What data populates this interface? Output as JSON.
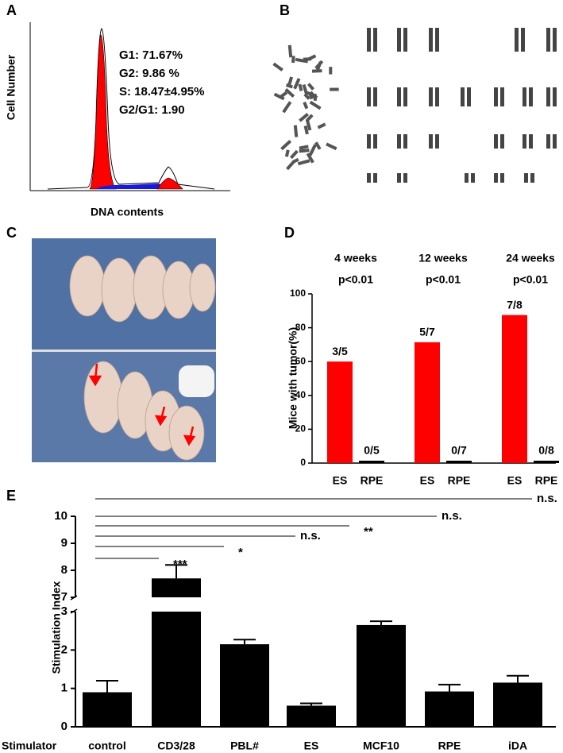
{
  "panels": {
    "a": {
      "label": "A",
      "ylabel": "Cell Number",
      "xlabel": "DNA contents",
      "stats": [
        "G1: 71.67%",
        "G2: 9.86 %",
        "S: 18.47±4.95%",
        "G2/G1: 1.90"
      ]
    },
    "b": {
      "label": "B"
    },
    "c": {
      "label": "C"
    }
  },
  "chart_data": [
    {
      "type": "bar",
      "label": "D",
      "ylabel": "Mice with tumor(%)",
      "groups": [
        {
          "name": "4 weeks",
          "p": "p<0.01"
        },
        {
          "name": "12 weeks",
          "p": "p<0.01"
        },
        {
          "name": "24 weeks",
          "p": "p<0.01"
        }
      ],
      "categories": [
        "ES",
        "RPE",
        "ES",
        "RPE",
        "ES",
        "RPE"
      ],
      "values": [
        60,
        0,
        71.43,
        0,
        87.5,
        0
      ],
      "value_labels": [
        "3/5",
        "0/5",
        "5/7",
        "0/7",
        "7/8",
        "0/8"
      ],
      "colors": [
        "#ff0000",
        "#000000",
        "#ff0000",
        "#000000",
        "#ff0000",
        "#000000"
      ],
      "ylim": [
        0,
        100
      ],
      "yticks": [
        0,
        20,
        40,
        60,
        80,
        100
      ]
    },
    {
      "type": "broken_bar",
      "label": "E",
      "ylabel": "Stimulation Index",
      "xlabel": "Stimulator",
      "categories": [
        "control",
        "CD3/28",
        "PBL#",
        "ES",
        "MCF10",
        "RPE",
        "iDA"
      ],
      "values": [
        0.9,
        7.7,
        2.15,
        0.55,
        2.65,
        0.92,
        1.15
      ],
      "errors": [
        0.3,
        0.5,
        0.12,
        0.06,
        0.1,
        0.18,
        0.18
      ],
      "color": "#000000",
      "ylim": [
        0,
        10
      ],
      "ybreak": [
        3,
        7
      ],
      "yticks": [
        0,
        1,
        2,
        3,
        7,
        8,
        9,
        10
      ],
      "significance": [
        {
          "label": "***",
          "target": "CD3/28"
        },
        {
          "label": "*",
          "target": "PBL#"
        },
        {
          "label": "n.s.",
          "target": "ES"
        },
        {
          "label": "**",
          "target": "MCF10"
        },
        {
          "label": "n.s.",
          "target": "RPE"
        },
        {
          "label": "n.s.",
          "target": "iDA"
        }
      ]
    }
  ]
}
